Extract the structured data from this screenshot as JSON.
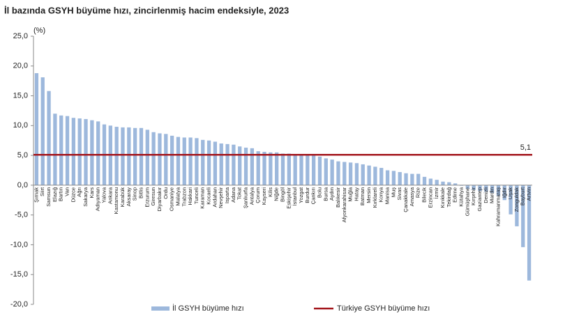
{
  "chart_data": {
    "type": "bar",
    "title": "İl bazında GSYH büyüme hızı, zincirlenmiş hacim endeksiyle, 2023",
    "y_label": "(%)",
    "categories": [
      "Şırnak",
      "Siirt",
      "Samsun",
      "Elazığ",
      "Bartın",
      "Van",
      "Düzce",
      "Ağrı",
      "Sakarya",
      "Kars",
      "Adıyaman",
      "Yalova",
      "Ankara",
      "Kastamonu",
      "Karabük",
      "Aksaray",
      "Sinop",
      "Bitlis",
      "Erzurum",
      "Giresun",
      "Diyarbakır",
      "Ordu",
      "Osmaniye",
      "Malatya",
      "Trabzon",
      "Hakkari",
      "Tunceli",
      "Karaman",
      "Kocaeli",
      "Ardahan",
      "Nevşehir",
      "Isparta",
      "Adana",
      "Tokat",
      "Şanlıurfa",
      "Antalya",
      "Çorum",
      "Kayseri",
      "Kilis",
      "Niğde",
      "Bingöl",
      "Eskişehir",
      "İstanbul",
      "Yozgat",
      "Burdur",
      "Çankırı",
      "Bolu",
      "Bursa",
      "Aydın",
      "Balıkesir",
      "Afyonkarahisar",
      "Muğla",
      "Hatay",
      "Batman",
      "Mersin",
      "Kırklareli",
      "Konya",
      "Manisa",
      "Muş",
      "Sivas",
      "Çanakkale",
      "Amasya",
      "Rize",
      "Bilecik",
      "Erzincan",
      "İzmir",
      "Kırıkkale",
      "Tekirdağ",
      "Edirne",
      "Kütahya",
      "Gümüşhane",
      "Kırşehir",
      "Gaziantep",
      "Denizli",
      "Mardin",
      "Kahramanmaraş",
      "Iğdır",
      "Uşak",
      "Zonguldak",
      "Bayburt",
      "Artvin"
    ],
    "series": [
      {
        "name": "İl GSYH büyüme hızı",
        "color": "#9db8dc",
        "values": [
          18.8,
          18.1,
          15.8,
          12.0,
          11.7,
          11.6,
          11.3,
          11.2,
          11.1,
          10.9,
          10.7,
          10.2,
          10.0,
          9.8,
          9.7,
          9.7,
          9.6,
          9.6,
          9.3,
          8.9,
          8.7,
          8.6,
          8.3,
          8.1,
          8.0,
          8.0,
          7.9,
          7.6,
          7.5,
          7.3,
          7.0,
          6.9,
          6.8,
          6.5,
          6.3,
          6.2,
          5.7,
          5.6,
          5.5,
          5.5,
          5.3,
          5.3,
          5.2,
          5.1,
          5.0,
          5.0,
          4.8,
          4.5,
          4.3,
          4.0,
          3.9,
          3.8,
          3.7,
          3.5,
          3.3,
          3.1,
          2.9,
          2.5,
          2.4,
          2.2,
          2.0,
          1.9,
          1.9,
          1.4,
          1.1,
          0.9,
          0.6,
          0.5,
          0.3,
          -0.1,
          -0.6,
          -0.8,
          -1.0,
          -1.1,
          -1.3,
          -1.8,
          -2.5,
          -4.9,
          -6.9,
          -10.4,
          -16.0
        ]
      }
    ],
    "reference": {
      "name": "Türkiye GSYH büyüme hızı",
      "value": 5.1,
      "label": "5,1",
      "color": "#a3161c"
    },
    "ylim": [
      -20,
      25
    ],
    "yticks": [
      {
        "value": -20,
        "label": "-20,0"
      },
      {
        "value": -15,
        "label": "-15,0"
      },
      {
        "value": -10,
        "label": "-10,0"
      },
      {
        "value": -5,
        "label": "-5,0"
      },
      {
        "value": 0,
        "label": "0,0"
      },
      {
        "value": 5,
        "label": "5,0"
      },
      {
        "value": 10,
        "label": "10,0"
      },
      {
        "value": 15,
        "label": "15,0"
      },
      {
        "value": 20,
        "label": "20,0"
      },
      {
        "value": 25,
        "label": "25,0"
      }
    ],
    "legend": "bottom"
  }
}
